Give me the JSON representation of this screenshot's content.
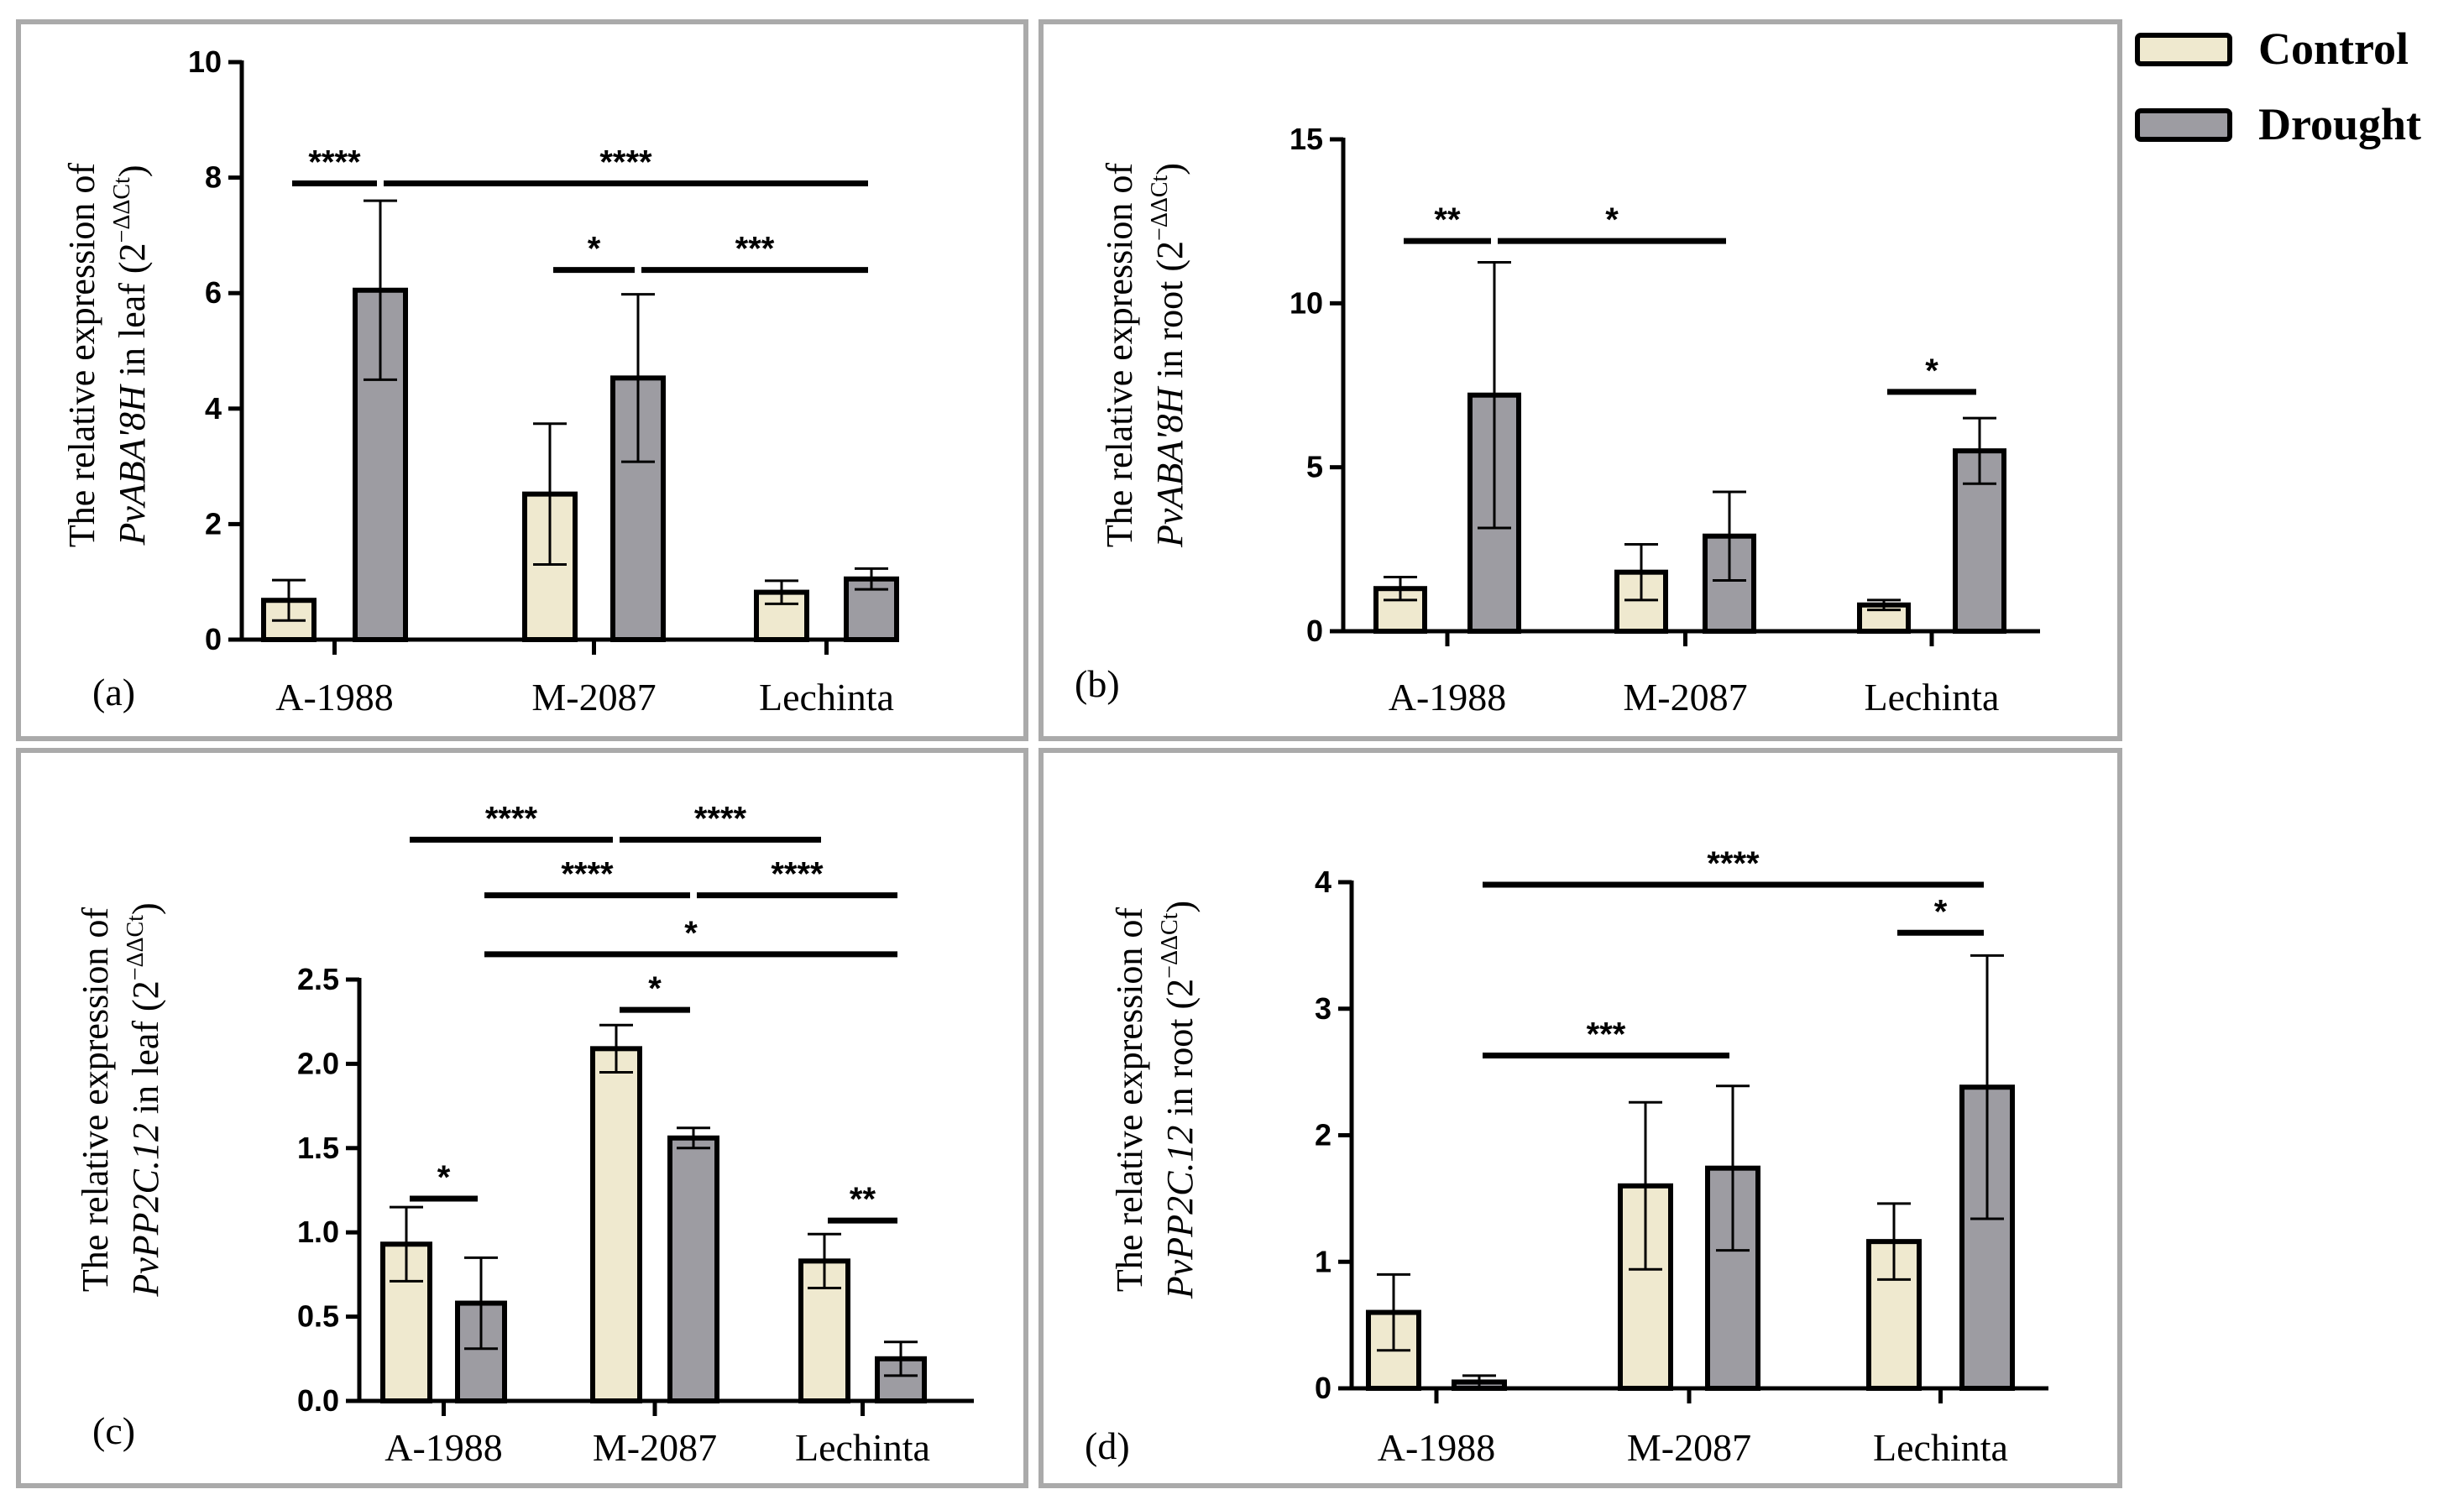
{
  "colors": {
    "control": "#efe9cf",
    "drought": "#9d9ca2",
    "frame": "#aaaaaa",
    "ink": "#000000"
  },
  "legend": {
    "items": [
      {
        "label": "Control",
        "color": "#efe9cf"
      },
      {
        "label": "Drought",
        "color": "#9d9ca2"
      }
    ]
  },
  "chart_data": [
    {
      "id": "a",
      "panel_label": "(a)",
      "type": "bar",
      "ylabel_line1": "The relative expression of",
      "ylabel_gene": "PvABA'8H",
      "ylabel_tissue": " in  leaf (2",
      "ylabel_exp": "−ΔΔCt",
      "ylabel_close": ")",
      "categories": [
        "A-1988",
        "M-2087",
        "Lechinta"
      ],
      "ylim": [
        0,
        10
      ],
      "yticks": [
        0,
        2,
        4,
        6,
        8,
        10
      ],
      "tick_labels": [
        "0",
        "2",
        "4",
        "6",
        "8",
        "10"
      ],
      "series": [
        {
          "name": "Control",
          "values": [
            0.68,
            2.52,
            0.82
          ],
          "err": [
            0.35,
            1.22,
            0.2
          ]
        },
        {
          "name": "Drought",
          "values": [
            6.05,
            4.53,
            1.05
          ],
          "err": [
            1.55,
            1.45,
            0.18
          ]
        }
      ],
      "significance": [
        {
          "label": "****",
          "y": 7.9,
          "from": [
            0,
            0
          ],
          "to": [
            0,
            1
          ]
        },
        {
          "label": "****",
          "y": 7.9,
          "from": [
            0,
            1
          ],
          "to": [
            2,
            1
          ]
        },
        {
          "label": "*",
          "y": 6.4,
          "from": [
            1,
            0
          ],
          "to": [
            1,
            1
          ]
        },
        {
          "label": "***",
          "y": 6.4,
          "from": [
            1,
            1
          ],
          "to": [
            2,
            1
          ]
        }
      ]
    },
    {
      "id": "b",
      "panel_label": "(b)",
      "type": "bar",
      "ylabel_line1": "The relative expression of",
      "ylabel_gene": "PvABA'8H",
      "ylabel_tissue": " in  root (2",
      "ylabel_exp": "−ΔΔCt",
      "ylabel_close": ")",
      "categories": [
        "A-1988",
        "M-2087",
        "Lechinta"
      ],
      "ylim": [
        0,
        15
      ],
      "yticks": [
        0,
        5,
        10,
        15
      ],
      "tick_labels": [
        "0",
        "5",
        "10",
        "15"
      ],
      "series": [
        {
          "name": "Control",
          "values": [
            1.3,
            1.8,
            0.8
          ],
          "err": [
            0.35,
            0.85,
            0.15
          ]
        },
        {
          "name": "Drought",
          "values": [
            7.2,
            2.9,
            5.5
          ],
          "err": [
            4.05,
            1.35,
            1.0
          ]
        }
      ],
      "significance": [
        {
          "label": "**",
          "y": 11.9,
          "from": [
            0,
            0
          ],
          "to": [
            0,
            1
          ]
        },
        {
          "label": "*",
          "y": 11.9,
          "from": [
            0,
            1
          ],
          "to": [
            1,
            1
          ]
        },
        {
          "label": "*",
          "y": 7.3,
          "from": [
            2,
            0
          ],
          "to": [
            2,
            1
          ]
        }
      ]
    },
    {
      "id": "c",
      "panel_label": "(c)",
      "type": "bar",
      "ylabel_line1": "The relative expression of",
      "ylabel_gene": "PvPP2C.12",
      "ylabel_tissue": " in  leaf (2",
      "ylabel_exp": "−ΔΔCt",
      "ylabel_close": ")",
      "categories": [
        "A-1988",
        "M-2087",
        "Lechinta"
      ],
      "ylim": [
        0,
        2.5
      ],
      "yticks": [
        0,
        0.5,
        1.0,
        1.5,
        2.0,
        2.5
      ],
      "tick_labels": [
        "0.0",
        "0.5",
        "1.0",
        "1.5",
        "2.0",
        "2.5"
      ],
      "series": [
        {
          "name": "Control",
          "values": [
            0.93,
            2.09,
            0.83
          ],
          "err": [
            0.22,
            0.14,
            0.16
          ]
        },
        {
          "name": "Drought",
          "values": [
            0.58,
            1.56,
            0.25
          ],
          "err": [
            0.27,
            0.06,
            0.1
          ]
        }
      ],
      "significance": [
        {
          "label": "****",
          "y": 3.33,
          "from": [
            0,
            0
          ],
          "to": [
            1,
            0
          ]
        },
        {
          "label": "****",
          "y": 3.33,
          "from": [
            1,
            0
          ],
          "to": [
            2,
            0
          ]
        },
        {
          "label": "****",
          "y": 3.0,
          "from": [
            0,
            1
          ],
          "to": [
            1,
            1
          ]
        },
        {
          "label": "****",
          "y": 3.0,
          "from": [
            1,
            1
          ],
          "to": [
            2,
            1
          ]
        },
        {
          "label": "*",
          "y": 2.65,
          "from": [
            0,
            1
          ],
          "to": [
            2,
            1
          ]
        },
        {
          "label": "*",
          "y": 2.32,
          "from": [
            1,
            0
          ],
          "to": [
            1,
            1
          ]
        },
        {
          "label": "*",
          "y": 1.2,
          "from": [
            0,
            0
          ],
          "to": [
            0,
            1
          ]
        },
        {
          "label": "**",
          "y": 1.07,
          "from": [
            2,
            0
          ],
          "to": [
            2,
            1
          ]
        }
      ]
    },
    {
      "id": "d",
      "panel_label": "(d)",
      "type": "bar",
      "ylabel_line1": "The relative expression of",
      "ylabel_gene": "PvPP2C.12",
      "ylabel_tissue": " in  root (2",
      "ylabel_exp": "−ΔΔCt",
      "ylabel_close": ")",
      "categories": [
        "A-1988",
        "M-2087",
        "Lechinta"
      ],
      "ylim": [
        0,
        4
      ],
      "yticks": [
        0,
        1,
        2,
        3,
        4
      ],
      "tick_labels": [
        "0",
        "1",
        "2",
        "3",
        "4"
      ],
      "series": [
        {
          "name": "Control",
          "values": [
            0.6,
            1.6,
            1.16
          ],
          "err": [
            0.3,
            0.66,
            0.3
          ]
        },
        {
          "name": "Drought",
          "values": [
            0.05,
            1.74,
            2.38
          ],
          "err": [
            0.05,
            0.65,
            1.04
          ]
        }
      ],
      "significance": [
        {
          "label": "****",
          "y": 3.98,
          "from": [
            0,
            1
          ],
          "to": [
            2,
            1
          ]
        },
        {
          "label": "*",
          "y": 3.6,
          "from": [
            2,
            0
          ],
          "to": [
            2,
            1
          ]
        },
        {
          "label": "***",
          "y": 2.63,
          "from": [
            0,
            1
          ],
          "to": [
            1,
            1
          ]
        }
      ]
    }
  ]
}
